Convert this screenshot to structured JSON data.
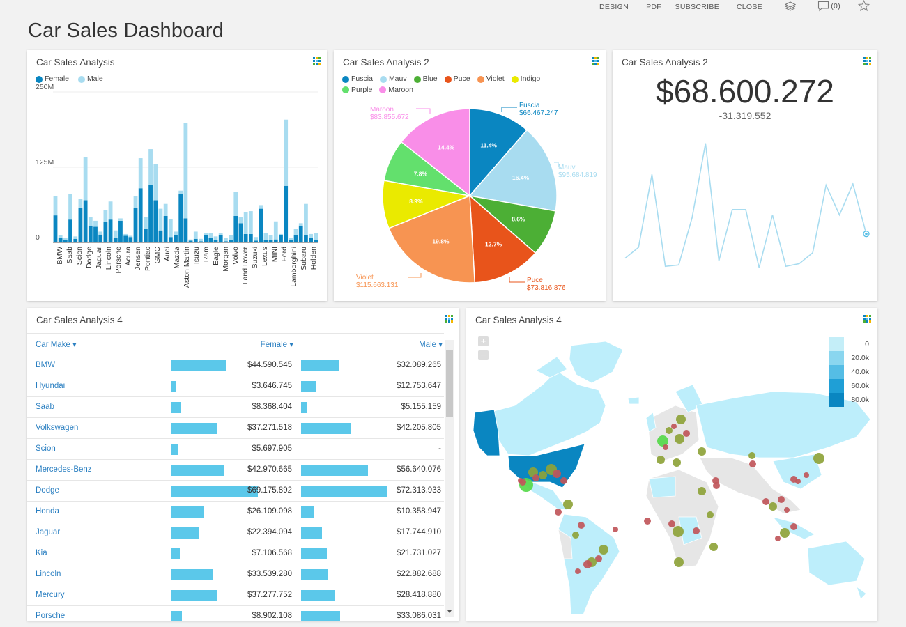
{
  "topbar": {
    "design": "DESIGN",
    "pdf": "PDF",
    "subscribe": "SUBSCRIBE",
    "close": "CLOSE",
    "comments": "(0)"
  },
  "page_title": "Car Sales Dashboard",
  "panels": {
    "bar": {
      "title": "Car Sales Analysis",
      "legend": [
        {
          "name": "Female",
          "color": "#0a86c1"
        },
        {
          "name": "Male",
          "color": "#a8dcf0"
        }
      ]
    },
    "pie": {
      "title": "Car Sales Analysis 2",
      "legend": [
        {
          "name": "Fuscia",
          "color": "#0a86c1"
        },
        {
          "name": "Mauv",
          "color": "#a8dcf0"
        },
        {
          "name": "Blue",
          "color": "#4caf35"
        },
        {
          "name": "Puce",
          "color": "#e8541b"
        },
        {
          "name": "Violet",
          "color": "#f79452"
        },
        {
          "name": "Indigo",
          "color": "#eaea00"
        },
        {
          "name": "Purple",
          "color": "#63e06d"
        },
        {
          "name": "Maroon",
          "color": "#f98ee8"
        }
      ]
    },
    "kpi": {
      "title": "Car Sales Analysis 2",
      "value": "$68.600.272",
      "delta": "-31.319.552"
    },
    "table": {
      "title": "Car Sales Analysis 4",
      "headers": {
        "make": "Car Make ▾",
        "female": "Female ▾",
        "male": "Male ▾"
      },
      "rows": [
        {
          "make": "BMW",
          "female": "$44.590.545",
          "male": "$32.089.265",
          "f": 44.59,
          "m": 32.09
        },
        {
          "make": "Hyundai",
          "female": "$3.646.745",
          "male": "$12.753.647",
          "f": 3.65,
          "m": 12.75
        },
        {
          "make": "Saab",
          "female": "$8.368.404",
          "male": "$5.155.159",
          "f": 8.37,
          "m": 5.16
        },
        {
          "make": "Volkswagen",
          "female": "$37.271.518",
          "male": "$42.205.805",
          "f": 37.27,
          "m": 42.21
        },
        {
          "make": "Scion",
          "female": "$5.697.905",
          "male": "-",
          "f": 5.7,
          "m": 0
        },
        {
          "make": "Mercedes-Benz",
          "female": "$42.970.665",
          "male": "$56.640.076",
          "f": 42.97,
          "m": 56.64
        },
        {
          "make": "Dodge",
          "female": "$69.175.892",
          "male": "$72.313.933",
          "f": 69.18,
          "m": 72.31
        },
        {
          "make": "Honda",
          "female": "$26.109.098",
          "male": "$10.358.947",
          "f": 26.11,
          "m": 10.36
        },
        {
          "make": "Jaguar",
          "female": "$22.394.094",
          "male": "$17.744.910",
          "f": 22.39,
          "m": 17.74
        },
        {
          "make": "Kia",
          "female": "$7.106.568",
          "male": "$21.731.027",
          "f": 7.11,
          "m": 21.73
        },
        {
          "make": "Lincoln",
          "female": "$33.539.280",
          "male": "$22.882.688",
          "f": 33.54,
          "m": 22.88
        },
        {
          "make": "Mercury",
          "female": "$37.277.752",
          "male": "$28.418.880",
          "f": 37.28,
          "m": 28.42
        },
        {
          "make": "Porsche",
          "female": "$8.902.108",
          "male": "$33.086.031",
          "f": 8.9,
          "m": 33.09
        }
      ]
    },
    "map": {
      "title": "Car Sales Analysis 4",
      "zoom_in": "+",
      "zoom_out": "−",
      "legend": [
        {
          "label": "0",
          "color": "#c4eef8"
        },
        {
          "label": "20.0k",
          "color": "#8ad6ef"
        },
        {
          "label": "40.0k",
          "color": "#55bde5"
        },
        {
          "label": "60.0k",
          "color": "#1f9fd6"
        },
        {
          "label": "80.0k",
          "color": "#0a86c1"
        }
      ]
    }
  },
  "chart_data": [
    {
      "type": "bar",
      "title": "Car Sales Analysis",
      "stacked": true,
      "ylim": [
        0,
        250
      ],
      "yticks": [
        "0",
        "125M",
        "250M"
      ],
      "categories": [
        "BMW",
        "Saab",
        "Scion",
        "Dodge",
        "Jaguar",
        "Lincoln",
        "Porsche",
        "Acura",
        "Jensen",
        "Pontiac",
        "GMC",
        "Audi",
        "Mazda",
        "Aston Martin",
        "Isuzu",
        "Ram",
        "Eagle",
        "Morgan",
        "Volvo",
        "Land Rover",
        "Suzuki",
        "Lexus",
        "MINI",
        "Ford",
        "Lamborghini",
        "Subaru",
        "Holden"
      ],
      "bars": [
        {
          "f": 45,
          "m": 32
        },
        {
          "f": 8,
          "m": 4
        },
        {
          "f": 4,
          "m": 3
        },
        {
          "f": 38,
          "m": 42
        },
        {
          "f": 6,
          "m": 4
        },
        {
          "f": 58,
          "m": 14
        },
        {
          "f": 70,
          "m": 72
        },
        {
          "f": 28,
          "m": 14
        },
        {
          "f": 26,
          "m": 10
        },
        {
          "f": 13,
          "m": 5
        },
        {
          "f": 34,
          "m": 20
        },
        {
          "f": 38,
          "m": 30
        },
        {
          "f": 8,
          "m": 12
        },
        {
          "f": 36,
          "m": 4
        },
        {
          "f": 11,
          "m": 3
        },
        {
          "f": 9,
          "m": 2
        },
        {
          "f": 57,
          "m": 20
        },
        {
          "f": 90,
          "m": 50
        },
        {
          "f": 22,
          "m": 20
        },
        {
          "f": 95,
          "m": 60
        },
        {
          "f": 70,
          "m": 60
        },
        {
          "f": 20,
          "m": 36
        },
        {
          "f": 44,
          "m": 20
        },
        {
          "f": 9,
          "m": 30
        },
        {
          "f": 12,
          "m": 6
        },
        {
          "f": 80,
          "m": 6
        },
        {
          "f": 40,
          "m": 158
        },
        {
          "f": 3,
          "m": 2
        },
        {
          "f": 6,
          "m": 12
        },
        {
          "f": 2,
          "m": 4
        },
        {
          "f": 12,
          "m": 3
        },
        {
          "f": 8,
          "m": 8
        },
        {
          "f": 4,
          "m": 6
        },
        {
          "f": 12,
          "m": 4
        },
        {
          "f": 2,
          "m": 6
        },
        {
          "f": 4,
          "m": 8
        },
        {
          "f": 44,
          "m": 40
        },
        {
          "f": 32,
          "m": 10
        },
        {
          "f": 14,
          "m": 36
        },
        {
          "f": 14,
          "m": 38
        },
        {
          "f": 3,
          "m": 6
        },
        {
          "f": 56,
          "m": 6
        },
        {
          "f": 4,
          "m": 12
        },
        {
          "f": 4,
          "m": 8
        },
        {
          "f": 5,
          "m": 30
        },
        {
          "f": 12,
          "m": 2
        },
        {
          "f": 94,
          "m": 110
        },
        {
          "f": 4,
          "m": 4
        },
        {
          "f": 12,
          "m": 10
        },
        {
          "f": 28,
          "m": 4
        },
        {
          "f": 12,
          "m": 52
        },
        {
          "f": 8,
          "m": 6
        },
        {
          "f": 4,
          "m": 12
        }
      ]
    },
    {
      "type": "pie",
      "title": "Car Sales Analysis 2",
      "slices": [
        {
          "name": "Fuscia",
          "value": 66467247,
          "label": "$66.467.247",
          "pct": "11.4%"
        },
        {
          "name": "Mauv",
          "value": 95684819,
          "label": "$95.684.819",
          "pct": "16.4%"
        },
        {
          "name": "Blue",
          "value": 50200000,
          "label": "",
          "pct": "8.6%"
        },
        {
          "name": "Puce",
          "value": 73816876,
          "label": "$73.816.876",
          "pct": "12.7%"
        },
        {
          "name": "Violet",
          "value": 115663131,
          "label": "$115.663.131",
          "pct": "19.8%"
        },
        {
          "name": "Indigo",
          "value": 51900000,
          "label": "",
          "pct": "8.9%"
        },
        {
          "name": "Purple",
          "value": 45500000,
          "label": "",
          "pct": "7.8%"
        },
        {
          "name": "Maroon",
          "value": 83855672,
          "label": "$83.855.672",
          "pct": "14.4%"
        }
      ]
    },
    {
      "type": "line",
      "title": "Car Sales Analysis 2",
      "ylim": [
        0,
        100
      ],
      "values": [
        10,
        18,
        72,
        4,
        5,
        40,
        95,
        8,
        46,
        46,
        3,
        42,
        4,
        6,
        14,
        64,
        42,
        65,
        28
      ]
    }
  ]
}
